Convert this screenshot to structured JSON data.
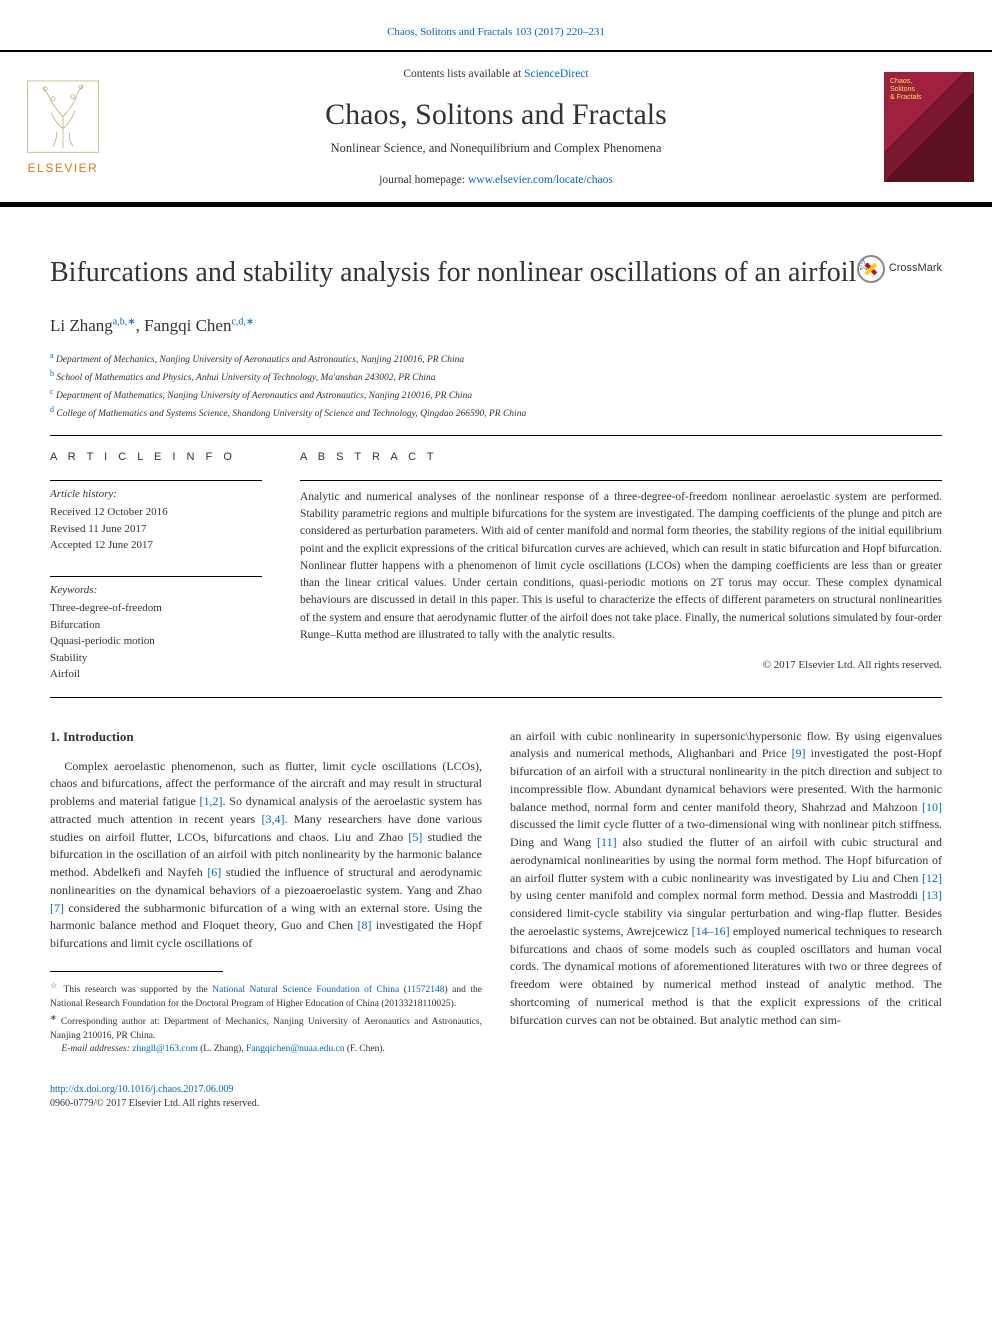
{
  "header": {
    "top_link": "Chaos, Solitons and Fractals 103 (2017) 220–231",
    "contents_prefix": "Contents lists available at ",
    "contents_link": "ScienceDirect",
    "journal_name": "Chaos, Solitons and Fractals",
    "journal_subtitle": "Nonlinear Science, and Nonequilibrium and Complex Phenomena",
    "homepage_prefix": "journal homepage: ",
    "homepage_link": "www.elsevier.com/locate/chaos",
    "publisher": "ELSEVIER",
    "cover_text": "Chaos,\nSolitons\n& Fractals"
  },
  "crossmark": "CrossMark",
  "title": "Bifurcations and stability analysis for nonlinear oscillations of an airfoil",
  "title_note_symbol": "☆",
  "authors": {
    "a1_name": "Li Zhang",
    "a1_sup": "a,b,∗",
    "sep": ", ",
    "a2_name": "Fangqi Chen",
    "a2_sup": "c,d,∗"
  },
  "affiliations": {
    "a": "Department of Mechanics, Nanjing University of Aeronautics and Astronautics, Nanjing 210016, PR China",
    "b": "School of Mathematics and Physics, Anhui University of Technology, Ma'anshan 243002, PR China",
    "c": "Department of Mathematics, Nanjing University of Aeronautics and Astronautics, Nanjing 210016, PR China",
    "d": "College of Mathematics and Systems Science, Shandong University of Science and Technology, Qingdao 266590, PR China"
  },
  "article_info": {
    "heading": "A R T I C L E   I N F O",
    "history_label": "Article history:",
    "received": "Received 12 October 2016",
    "revised": "Revised 11 June 2017",
    "accepted": "Accepted 12 June 2017",
    "keywords_label": "Keywords:",
    "kw1": "Three-degree-of-freedom",
    "kw2": "Bifurcation",
    "kw3": "Qquasi-periodic motion",
    "kw4": "Stability",
    "kw5": "Airfoil"
  },
  "abstract": {
    "heading": "A B S T R A C T",
    "body": "Analytic and numerical analyses of the nonlinear response of a three-degree-of-freedom nonlinear aeroelastic system are performed. Stability parametric regions and multiple bifurcations for the system are investigated. The damping coefficients of the plunge and pitch are considered as perturbation parameters. With aid of center manifold and normal form theories, the stability regions of the initial equilibrium point and the explicit expressions of the critical bifurcation curves are achieved, which can result in static bifurcation and Hopf bifurcation. Nonlinear flutter happens with a phenomenon of limit cycle oscillations (LCOs) when the damping coefficients are less than or greater than the linear critical values. Under certain conditions, quasi-periodic motions on 2T torus may occur. These complex dynamical behaviours are discussed in detail in this paper. This is useful to characterize the effects of different parameters on structural nonlinearities of the system and ensure that aerodynamic flutter of the airfoil does not take place. Finally, the numerical solutions simulated by four-order Runge–Kutta method are illustrated to tally with the analytic results.",
    "copyright": "© 2017 Elsevier Ltd. All rights reserved."
  },
  "body": {
    "section_heading": "1. Introduction",
    "col1": "Complex aeroelastic phenomenon, such as flutter, limit cycle oscillations (LCOs), chaos and bifurcations, affect the performance of the aircraft and may result in structural problems and material fatigue [1,2]. So dynamical analysis of the aeroelastic system has attracted much attention in recent years [3,4]. Many researchers have done various studies on airfoil flutter, LCOs, bifurcations and chaos. Liu and Zhao [5] studied the bifurcation in the oscillation of an airfoil with pitch nonlinearity by the harmonic balance method. Abdelkefi and Nayfeh [6] studied the influence of structural and aerodynamic nonlinearities on the dynamical behaviors of a piezoaeroelastic system. Yang and Zhao [7] considered the subharmonic bifurcation of a wing with an external store. Using the harmonic balance method and Floquet theory, Guo and Chen [8] investigated the Hopf bifurcations and limit cycle oscillations of",
    "col2": "an airfoil with cubic nonlinearity in supersonic\\hypersonic flow. By using eigenvalues analysis and numerical methods, Alighanbari and Price [9] investigated the post-Hopf bifurcation of an airfoil with a structural nonlinearity in the pitch direction and subject to incompressible flow. Abundant dynamical behaviors were presented. With the harmonic balance method, normal form and center manifold theory, Shahrzad and Mahzoon [10] discussed the limit cycle flutter of a two-dimensional wing with nonlinear pitch stiffness. Ding and Wang [11] also studied the flutter of an airfoil with cubic structural and aerodynamical nonlinearities by using the normal form method. The Hopf bifurcation of an airfoil flutter system with a cubic nonlinearity was investigated by Liu and Chen [12] by using center manifold and complex normal form method. Dessia and Mastroddi [13] considered limit-cycle stability via singular perturbation and wing-flap flutter. Besides the aeroelastic systems, Awrejcewicz [14–16] employed numerical techniques to research bifurcations and chaos of some models such as coupled oscillators and human vocal cords. The dynamical motions of aforementioned literatures with two or three degrees of freedom were obtained by numerical method instead of analytic method. The shortcoming of numerical method is that the explicit expressions of the critical bifurcation curves can not be obtained. But analytic method can sim-",
    "refs_col1": [
      "[1,2]",
      "[3,4]",
      "[5]",
      "[6]",
      "[7]",
      "[8]"
    ],
    "refs_col2": [
      "[9]",
      "[10]",
      "[11]",
      "[12]",
      "[13]",
      "[14–16]"
    ]
  },
  "footnotes": {
    "funding_symbol": "☆",
    "funding_text_1": " This research was supported by the ",
    "funding_link": "National Natural Science Foundation of China",
    "funding_text_2": " (",
    "grant_link": "11572148",
    "funding_text_3": ") and the National Research Foundation for the Doctoral Program of Higher Education of China (20133218110025).",
    "corr_symbol": "∗",
    "corr_text": " Corresponding author at: Department of Mechanics, Nanjing University of Aeronautics and Astronautics, Nanjing 210016, PR China.",
    "email_label": "E-mail addresses: ",
    "email1": "zhngll@163.com",
    "email1_suffix": " (L. Zhang), ",
    "email2": "Fangqichen@nuaa.edu.cn",
    "email2_suffix": " (F. Chen)."
  },
  "footer": {
    "doi": "http://dx.doi.org/10.1016/j.chaos.2017.06.009",
    "issn": "0960-0779/© 2017 Elsevier Ltd. All rights reserved."
  },
  "colors": {
    "link": "#0066cc",
    "publisher": "#e67817",
    "text": "#333333",
    "rule": "#000000",
    "background": "#ffffff"
  }
}
